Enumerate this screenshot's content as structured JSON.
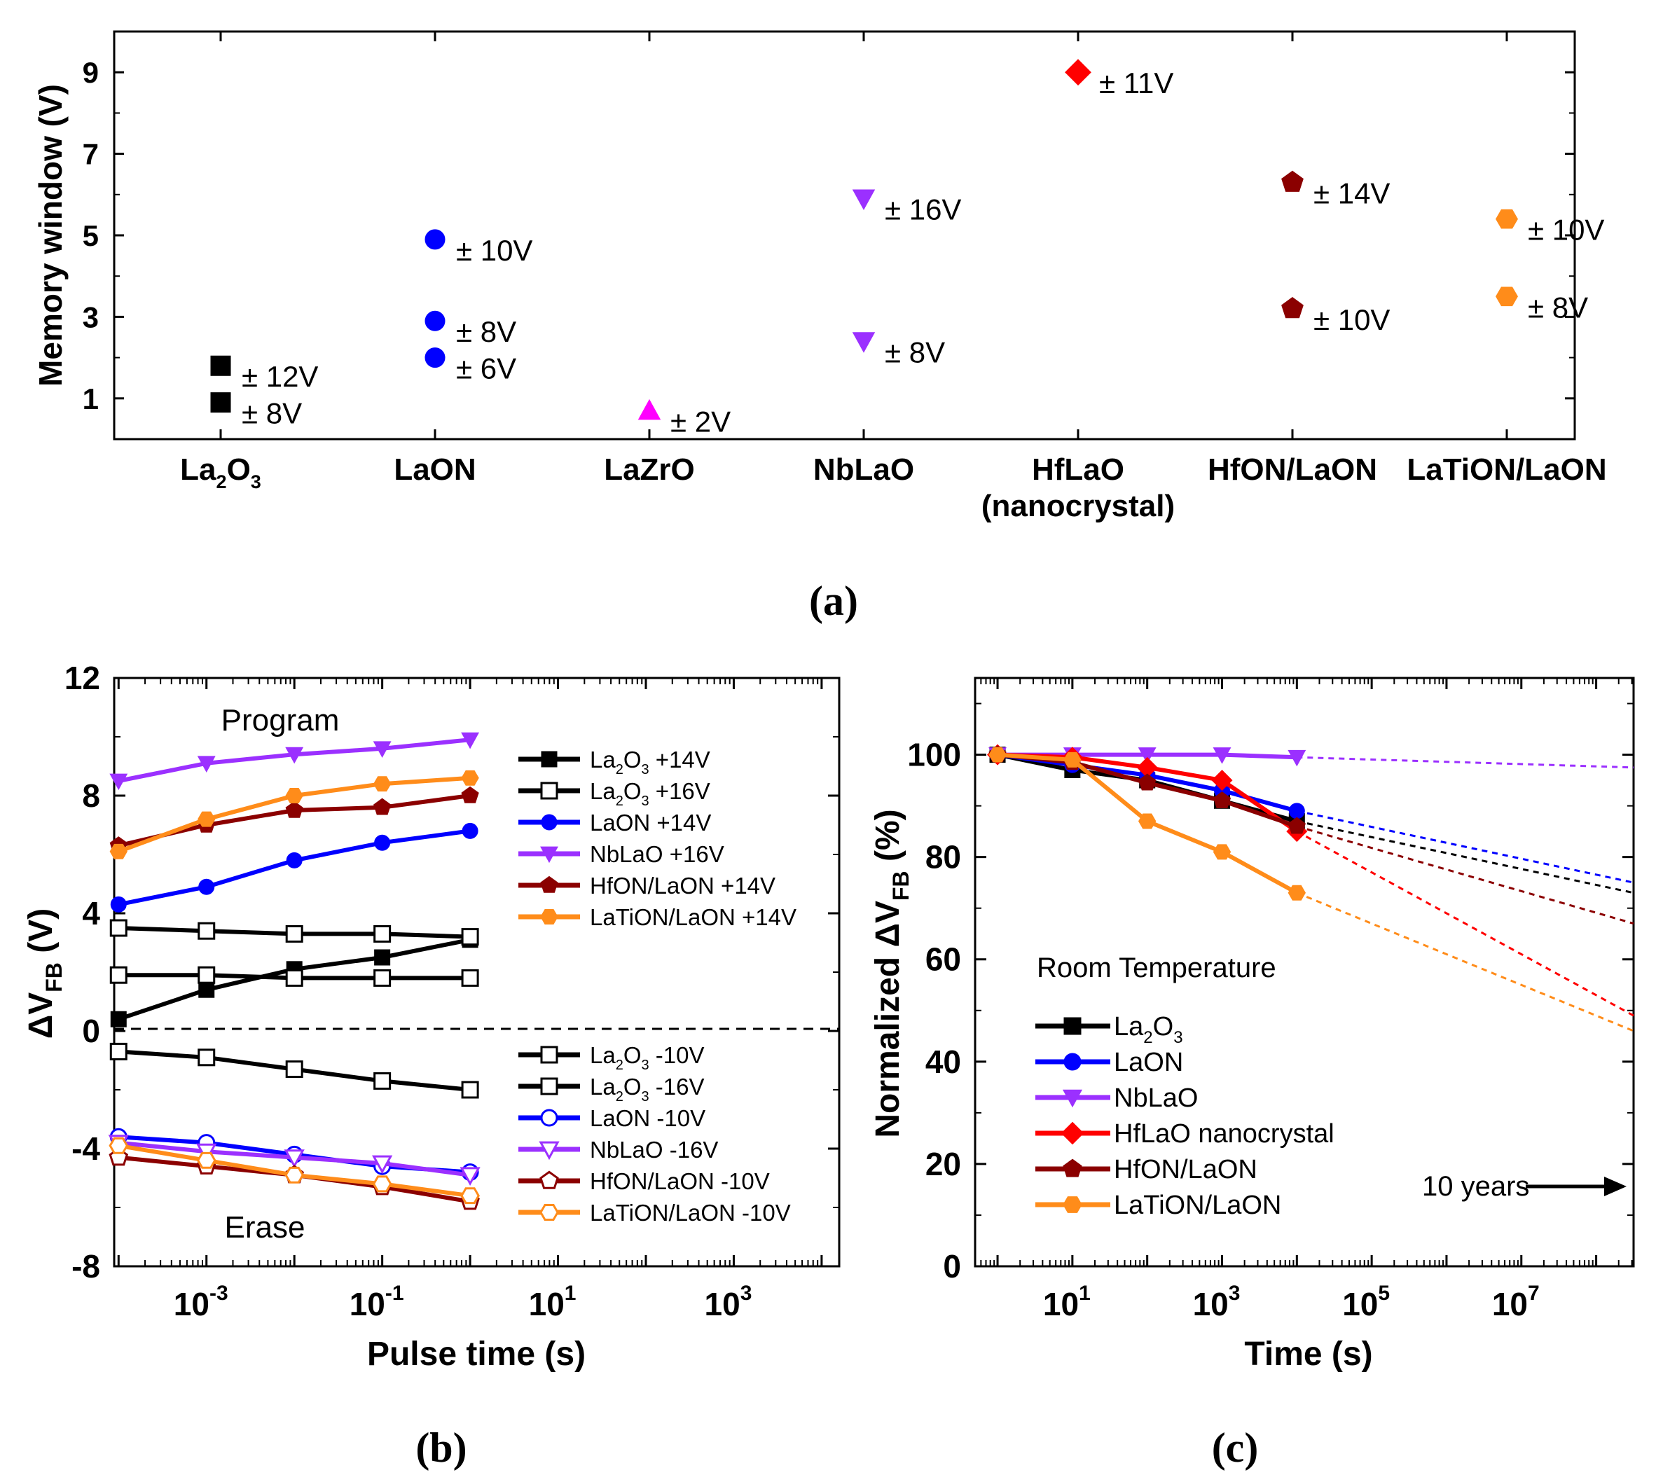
{
  "chart_data": [
    {
      "panel": "a",
      "type": "scatter",
      "panel_label": "(a)",
      "ylabel": "Memory window (V)",
      "ylim": [
        0,
        10
      ],
      "yticks": [
        "1",
        "3",
        "5",
        "7",
        "9"
      ],
      "categories": [
        {
          "main": "La",
          "sub1": "2",
          "mid": "O",
          "sub2": "3"
        },
        {
          "main": "LaON"
        },
        {
          "main": "LaZrO"
        },
        {
          "main": "NbLaO"
        },
        {
          "main": "HfLaO",
          "line2": "(nanocrystal)"
        },
        {
          "main": "HfON/LaON"
        },
        {
          "main": "LaTiON/LaON"
        }
      ],
      "points": [
        {
          "category": 0,
          "value": 0.9,
          "label": "± 8V",
          "marker": "square",
          "color": "#000000"
        },
        {
          "category": 0,
          "value": 1.8,
          "label": "± 12V",
          "marker": "square",
          "color": "#000000"
        },
        {
          "category": 1,
          "value": 2.0,
          "label": "± 6V",
          "marker": "circle",
          "color": "#0000ff"
        },
        {
          "category": 1,
          "value": 2.9,
          "label": "± 8V",
          "marker": "circle",
          "color": "#0000ff"
        },
        {
          "category": 1,
          "value": 4.9,
          "label": "± 10V",
          "marker": "circle",
          "color": "#0000ff"
        },
        {
          "category": 2,
          "value": 0.7,
          "label": "± 2V",
          "marker": "triangle-up",
          "color": "#ff00ff"
        },
        {
          "category": 3,
          "value": 2.4,
          "label": "± 8V",
          "marker": "triangle-down",
          "color": "#9b30ff"
        },
        {
          "category": 3,
          "value": 5.9,
          "label": "± 16V",
          "marker": "triangle-down",
          "color": "#9b30ff"
        },
        {
          "category": 4,
          "value": 9.0,
          "label": "± 11V",
          "marker": "diamond",
          "color": "#ff0000"
        },
        {
          "category": 5,
          "value": 3.2,
          "label": "± 10V",
          "marker": "pentagon",
          "color": "#8b0000"
        },
        {
          "category": 5,
          "value": 6.3,
          "label": "± 14V",
          "marker": "pentagon",
          "color": "#8b0000"
        },
        {
          "category": 6,
          "value": 3.5,
          "label": "± 8V",
          "marker": "hexagon",
          "color": "#ff8c1a"
        },
        {
          "category": 6,
          "value": 5.4,
          "label": "± 10V",
          "marker": "hexagon",
          "color": "#ff8c1a"
        }
      ]
    },
    {
      "panel": "b",
      "type": "line",
      "panel_label": "(b)",
      "xlabel": "Pulse time (s)",
      "ylabel_main": "ΔV",
      "ylabel_sub": "FB",
      "ylabel_unit": " (V)",
      "xscale": "log",
      "xlim_log10": [
        -4.05,
        4.2
      ],
      "ylim": [
        -8,
        12
      ],
      "yticks": [
        "-8",
        "-4",
        "0",
        "4",
        "8",
        "12"
      ],
      "xticks": [
        {
          "b": "10",
          "e": "-3"
        },
        {
          "b": "10",
          "e": "-1"
        },
        {
          "b": "10",
          "e": "1"
        },
        {
          "b": "10",
          "e": "3"
        }
      ],
      "annotations": [
        "Program",
        "Erase"
      ],
      "x_log10": [
        -4,
        -3,
        -2,
        -1,
        0
      ],
      "series": [
        {
          "name": "+14V",
          "material": "La2O3",
          "color": "#000000",
          "marker": "square",
          "filled": true,
          "values": [
            0.4,
            1.4,
            2.1,
            2.5,
            3.1
          ]
        },
        {
          "name": "+16V",
          "material": "La2O3",
          "color": "#000000",
          "marker": "square",
          "filled": false,
          "values": [
            3.5,
            3.4,
            3.3,
            3.3,
            3.2
          ]
        },
        {
          "name": "+16V (b)",
          "material": "La2O3",
          "color": "#000000",
          "marker": "square",
          "filled": false,
          "legend": false,
          "values": [
            1.9,
            1.9,
            1.8,
            1.8,
            1.8
          ]
        },
        {
          "name": "LaON +14V",
          "color": "#0000ff",
          "marker": "circle",
          "filled": true,
          "values": [
            4.3,
            4.9,
            5.8,
            6.4,
            6.8
          ]
        },
        {
          "name": "NbLaO +16V",
          "color": "#9b30ff",
          "marker": "triangle-down",
          "filled": true,
          "values": [
            8.5,
            9.1,
            9.4,
            9.6,
            9.9
          ]
        },
        {
          "name": "HfON/LaON +14V",
          "color": "#8b0000",
          "marker": "pentagon",
          "filled": true,
          "values": [
            6.3,
            7.0,
            7.5,
            7.6,
            8.0
          ]
        },
        {
          "name": "LaTiON/LaON +14V",
          "color": "#ff8c1a",
          "marker": "hexagon",
          "filled": true,
          "values": [
            6.1,
            7.2,
            8.0,
            8.4,
            8.6
          ]
        },
        {
          "name": "-10V",
          "material": "La2O3",
          "color": "#000000",
          "marker": "square",
          "filled": false,
          "values": [
            -0.7,
            -0.9,
            -1.3,
            -1.7,
            -2.0
          ]
        },
        {
          "name": "LaON -10V",
          "color": "#0000ff",
          "marker": "circle",
          "filled": false,
          "values": [
            -3.6,
            -3.8,
            -4.2,
            -4.6,
            -4.8
          ]
        },
        {
          "name": "NbLaO -16V",
          "color": "#9b30ff",
          "marker": "triangle-down",
          "filled": false,
          "values": [
            -3.8,
            -4.1,
            -4.3,
            -4.5,
            -4.9
          ]
        },
        {
          "name": "HfON/LaON -10V",
          "color": "#8b0000",
          "marker": "pentagon",
          "filled": false,
          "values": [
            -4.3,
            -4.6,
            -4.9,
            -5.3,
            -5.8
          ]
        },
        {
          "name": "LaTiON/LaON -10V",
          "color": "#ff8c1a",
          "marker": "hexagon",
          "filled": false,
          "values": [
            -3.9,
            -4.4,
            -4.9,
            -5.2,
            -5.6
          ]
        }
      ],
      "legend_top": [
        {
          "series": 0,
          "pre": "La",
          "sub1": "2",
          "mid": "O",
          "sub2": "3",
          "post": " +14V"
        },
        {
          "series": 1,
          "pre": "La",
          "sub1": "2",
          "mid": "O",
          "sub2": "3",
          "post": " +16V"
        },
        {
          "series": 3,
          "text": "LaON +14V"
        },
        {
          "series": 4,
          "text": "NbLaO +16V"
        },
        {
          "series": 5,
          "text": "HfON/LaON +14V"
        },
        {
          "series": 6,
          "text": "LaTiON/LaON +14V"
        }
      ],
      "legend_bottom": [
        {
          "series": 7,
          "pre": "La",
          "sub1": "2",
          "mid": "O",
          "sub2": "3",
          "post": " -10V"
        },
        {
          "series": 1,
          "pre": "La",
          "sub1": "2",
          "mid": "O",
          "sub2": "3",
          "post": " -16V"
        },
        {
          "series": 8,
          "text": "LaON -10V"
        },
        {
          "series": 9,
          "text": "NbLaO -16V"
        },
        {
          "series": 10,
          "text": "HfON/LaON -10V"
        },
        {
          "series": 11,
          "text": "LaTiON/LaON -10V"
        }
      ]
    },
    {
      "panel": "c",
      "type": "line",
      "panel_label": "(c)",
      "xlabel": "Time (s)",
      "ylabel_main": "Normalized ΔV",
      "ylabel_sub": "FB",
      "ylabel_unit": " (%)",
      "xscale": "log",
      "xlim_log10": [
        -0.3,
        8.5
      ],
      "ylim": [
        0,
        115
      ],
      "yticks": [
        "0",
        "20",
        "40",
        "60",
        "80",
        "100"
      ],
      "xticks": [
        {
          "b": "10",
          "e": "1"
        },
        {
          "b": "10",
          "e": "3"
        },
        {
          "b": "10",
          "e": "5"
        },
        {
          "b": "10",
          "e": "7"
        }
      ],
      "annotation": "Room Temperature",
      "arrow_label": "10 years",
      "series": [
        {
          "name": "La2O3",
          "legend_pre": "La",
          "legend_sub1": "2",
          "legend_mid": "O",
          "legend_sub2": "3",
          "color": "#000000",
          "marker": "square",
          "x_log10": [
            0,
            1,
            2,
            3,
            4
          ],
          "values": [
            100,
            97,
            95,
            91,
            87
          ],
          "extrapolation_end": 73
        },
        {
          "name": "LaON",
          "color": "#0000ff",
          "marker": "circle",
          "x_log10": [
            0,
            1,
            2,
            3,
            4
          ],
          "values": [
            100,
            98,
            96,
            93,
            89
          ],
          "extrapolation_end": 75
        },
        {
          "name": "NbLaO",
          "color": "#9b30ff",
          "marker": "triangle-down",
          "x_log10": [
            0,
            1,
            2,
            3,
            4
          ],
          "values": [
            100,
            100,
            100,
            100,
            99.5
          ],
          "extrapolation_end": 97.5
        },
        {
          "name": "HfLaO nanocrystal",
          "color": "#ff0000",
          "marker": "diamond",
          "x_log10": [
            0,
            1,
            2,
            3,
            4
          ],
          "values": [
            100,
            99.5,
            97.5,
            95,
            85
          ],
          "extrapolation_end": 49
        },
        {
          "name": "HfON/LaON",
          "color": "#8b0000",
          "marker": "pentagon",
          "x_log10": [
            0,
            1,
            2,
            3,
            4
          ],
          "values": [
            100,
            98.5,
            94.5,
            91,
            86
          ],
          "extrapolation_end": 67
        },
        {
          "name": "LaTiON/LaON",
          "color": "#ff8c1a",
          "marker": "hexagon",
          "x_log10": [
            0,
            1,
            2,
            3,
            4
          ],
          "values": [
            100,
            99,
            87,
            81,
            73
          ],
          "extrapolation_end": 46
        }
      ],
      "extrapolation_to_log10": 8.5
    }
  ]
}
